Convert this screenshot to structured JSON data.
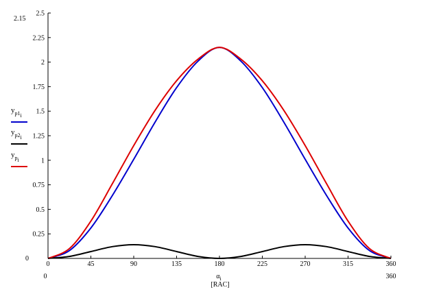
{
  "chart_data": {
    "type": "line",
    "x_range": [
      0,
      360
    ],
    "y_range": [
      0,
      2.5
    ],
    "x_ticks": [
      "0",
      "45",
      "90",
      "135",
      "180",
      "225",
      "270",
      "315",
      "360"
    ],
    "y_ticks": [
      "0",
      "0.25",
      "0.5",
      "0.75",
      "1",
      "1.25",
      "1.5",
      "1.75",
      "2",
      "2.25",
      "2.5"
    ],
    "y_limit_labels": {
      "top": "2.15",
      "bottom": "0"
    },
    "x_limit_labels": {
      "left": "0",
      "right": "360"
    },
    "xlabel": "α",
    "xlabel_sub": "i",
    "xlabel_unit": "[RAC]",
    "grid": false,
    "legend_position": "left",
    "series": [
      {
        "name": "y",
        "name_sub1": "p1",
        "name_sub2": "i",
        "color": "#0000cc",
        "x": [
          0,
          22.5,
          45,
          67.5,
          90,
          112.5,
          135,
          157.5,
          180,
          202.5,
          225,
          247.5,
          270,
          292.5,
          315,
          337.5,
          360
        ],
        "values": [
          0,
          0.08,
          0.31,
          0.64,
          1.01,
          1.39,
          1.74,
          2.01,
          2.15,
          2.01,
          1.74,
          1.39,
          1.01,
          0.64,
          0.31,
          0.08,
          0
        ]
      },
      {
        "name": "y",
        "name_sub1": "p2",
        "name_sub2": "i",
        "color": "#000000",
        "x": [
          0,
          22.5,
          45,
          67.5,
          90,
          112.5,
          135,
          157.5,
          180,
          202.5,
          225,
          247.5,
          270,
          292.5,
          315,
          337.5,
          360
        ],
        "values": [
          0,
          0.02,
          0.07,
          0.12,
          0.14,
          0.12,
          0.07,
          0.02,
          0,
          0.02,
          0.07,
          0.12,
          0.14,
          0.12,
          0.07,
          0.02,
          0
        ]
      },
      {
        "name": "y",
        "name_sub1": "p",
        "name_sub2": "i",
        "color": "#dd0000",
        "x": [
          0,
          22.5,
          45,
          67.5,
          90,
          112.5,
          135,
          157.5,
          180,
          202.5,
          225,
          247.5,
          270,
          292.5,
          315,
          337.5,
          360
        ],
        "values": [
          0,
          0.1,
          0.38,
          0.76,
          1.15,
          1.51,
          1.81,
          2.03,
          2.15,
          2.03,
          1.81,
          1.51,
          1.15,
          0.76,
          0.38,
          0.1,
          0
        ]
      }
    ]
  }
}
